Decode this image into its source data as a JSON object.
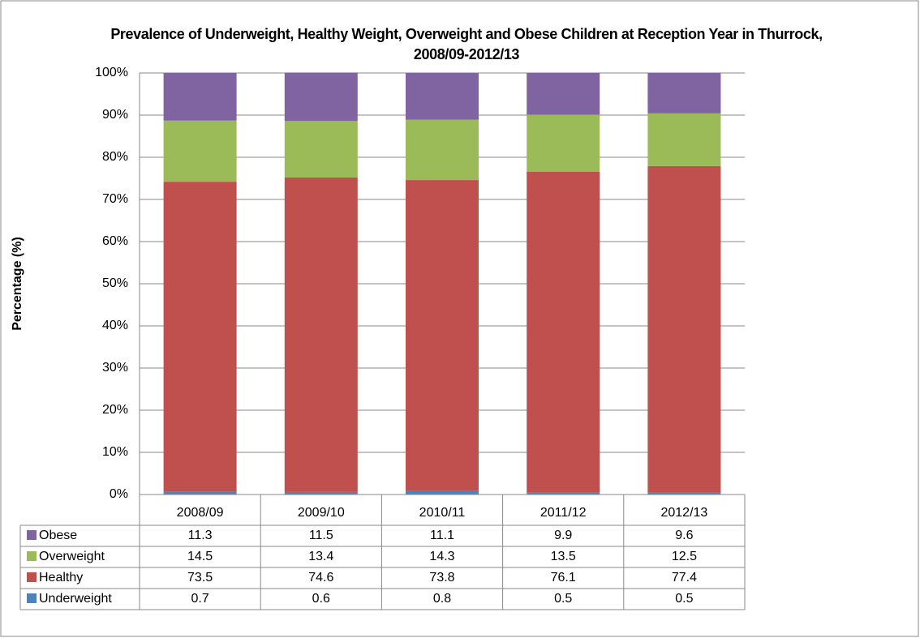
{
  "chart_data": {
    "type": "stacked_bar",
    "title": "Prevalence of Underweight, Healthy Weight, Overweight and Obese Children at Reception Year in Thurrock, 2008/09-2012/13",
    "y_label": "Percentage (%)",
    "categories": [
      "2008/09",
      "2009/10",
      "2010/11",
      "2011/12",
      "2012/13"
    ],
    "series": [
      {
        "name": "Underweight",
        "color": "#4f81bd",
        "values": [
          0.7,
          0.6,
          0.8,
          0.5,
          0.5
        ]
      },
      {
        "name": "Healthy",
        "color": "#c0504d",
        "values": [
          73.5,
          74.6,
          73.8,
          76.1,
          77.4
        ]
      },
      {
        "name": "Overweight",
        "color": "#9bbb59",
        "values": [
          14.5,
          13.4,
          14.3,
          13.5,
          12.5
        ]
      },
      {
        "name": "Obese",
        "color": "#8064a2",
        "values": [
          11.3,
          11.5,
          11.1,
          9.9,
          9.6
        ]
      }
    ],
    "ylim": [
      0,
      100
    ],
    "yticks": [
      {
        "value": 0,
        "label": "0%"
      },
      {
        "value": 10,
        "label": "10%"
      },
      {
        "value": 20,
        "label": "20%"
      },
      {
        "value": 30,
        "label": "30%"
      },
      {
        "value": 40,
        "label": "40%"
      },
      {
        "value": 50,
        "label": "50%"
      },
      {
        "value": 60,
        "label": "60%"
      },
      {
        "value": 70,
        "label": "70%"
      },
      {
        "value": 80,
        "label": "80%"
      },
      {
        "value": 90,
        "label": "90%"
      },
      {
        "value": 100,
        "label": "100%"
      }
    ],
    "grid": true
  }
}
